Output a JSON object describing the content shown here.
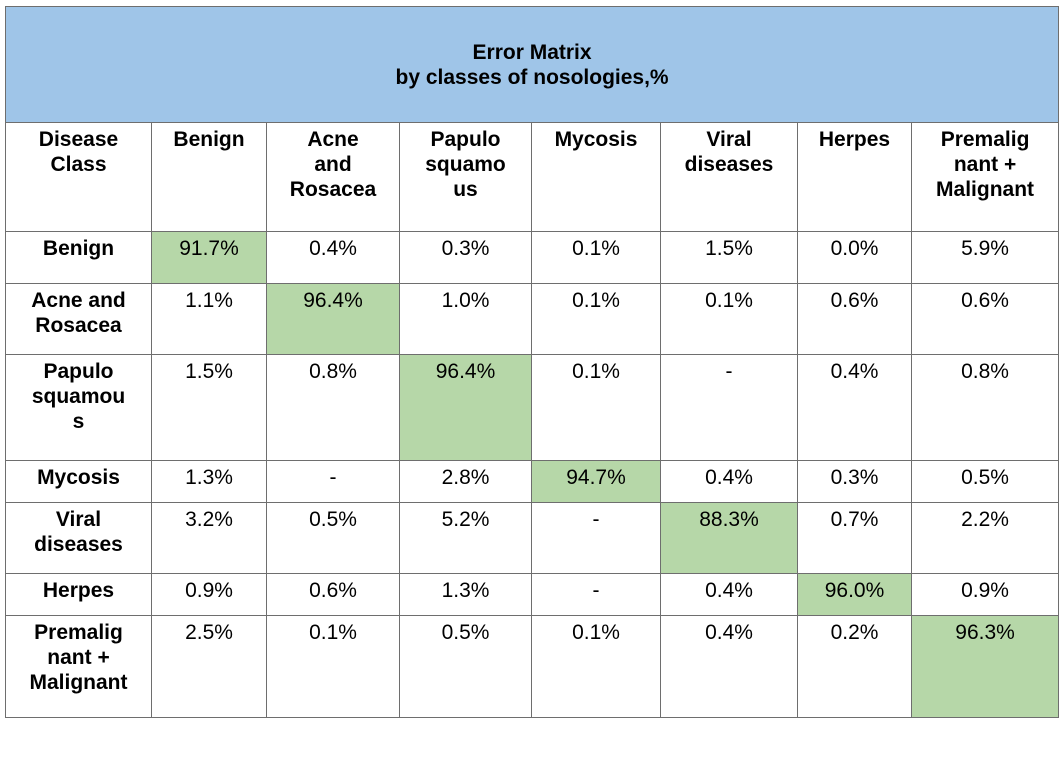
{
  "title": {
    "line1": "Error Matrix",
    "line2": "by classes of nosologies,%"
  },
  "colors": {
    "title_bg": "#9fc5e8",
    "diagonal_bg": "#b6d7a8",
    "border": "#6e6e6e"
  },
  "header": {
    "corner": "Disease\nClass",
    "columns": [
      "Benign",
      "Acne\nand\nRosacea",
      "Papulo\nsquamo\nus",
      "Mycosis",
      "Viral\ndiseases",
      "Herpes",
      "Premalig\nnant +\nMalignant"
    ]
  },
  "rows": [
    {
      "label": "Benign",
      "values": [
        "91.7%",
        "0.4%",
        "0.3%",
        "0.1%",
        "1.5%",
        "0.0%",
        "5.9%"
      ]
    },
    {
      "label": "Acne and\nRosacea",
      "values": [
        "1.1%",
        "96.4%",
        "1.0%",
        "0.1%",
        "0.1%",
        "0.6%",
        "0.6%"
      ]
    },
    {
      "label": "Papulo\nsquamou\ns",
      "values": [
        "1.5%",
        "0.8%",
        "96.4%",
        "0.1%",
        "-",
        "0.4%",
        "0.8%"
      ]
    },
    {
      "label": "Mycosis",
      "values": [
        "1.3%",
        "-",
        "2.8%",
        "94.7%",
        "0.4%",
        "0.3%",
        "0.5%"
      ]
    },
    {
      "label": "Viral\ndiseases",
      "values": [
        "3.2%",
        "0.5%",
        "5.2%",
        "-",
        "88.3%",
        "0.7%",
        "2.2%"
      ]
    },
    {
      "label": "Herpes",
      "values": [
        "0.9%",
        "0.6%",
        "1.3%",
        "-",
        "0.4%",
        "96.0%",
        "0.9%"
      ]
    },
    {
      "label": "Premalig\nnant +\nMalignant",
      "values": [
        "2.5%",
        "0.1%",
        "0.5%",
        "0.1%",
        "0.4%",
        "0.2%",
        "96.3%"
      ]
    }
  ]
}
